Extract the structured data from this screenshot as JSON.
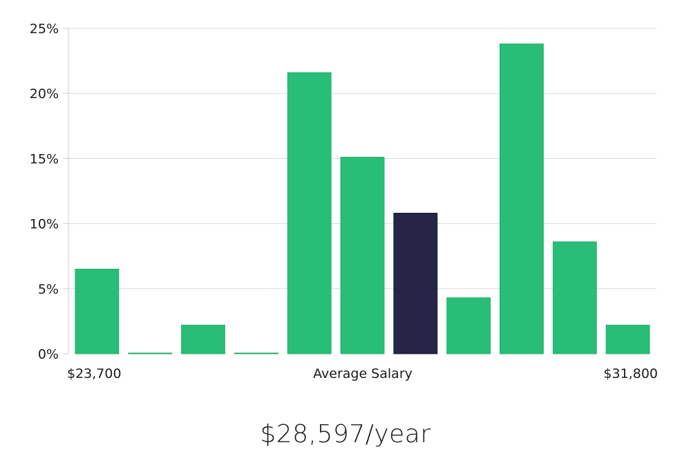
{
  "chart_data": {
    "type": "bar",
    "bar_values": [
      6.5,
      0.05,
      2.2,
      0.05,
      21.6,
      15.1,
      10.8,
      4.3,
      23.8,
      8.6,
      2.2
    ],
    "highlight_index": 6,
    "ylim": [
      0,
      25
    ],
    "y_ticks": [
      0,
      5,
      10,
      15,
      20,
      25
    ],
    "y_tick_labels": [
      "0%",
      "5%",
      "10%",
      "15%",
      "20%",
      "25%"
    ],
    "grid": true,
    "x_min_label": "$23,700",
    "x_center_label": "Average Salary",
    "x_max_label": "$31,800",
    "colors": {
      "bar": "#29be78",
      "bar_edge": "#1fae6a",
      "highlight": "#272546",
      "highlight_edge": "#17153a"
    }
  },
  "summary": {
    "salary_text": "$28,597/year"
  }
}
